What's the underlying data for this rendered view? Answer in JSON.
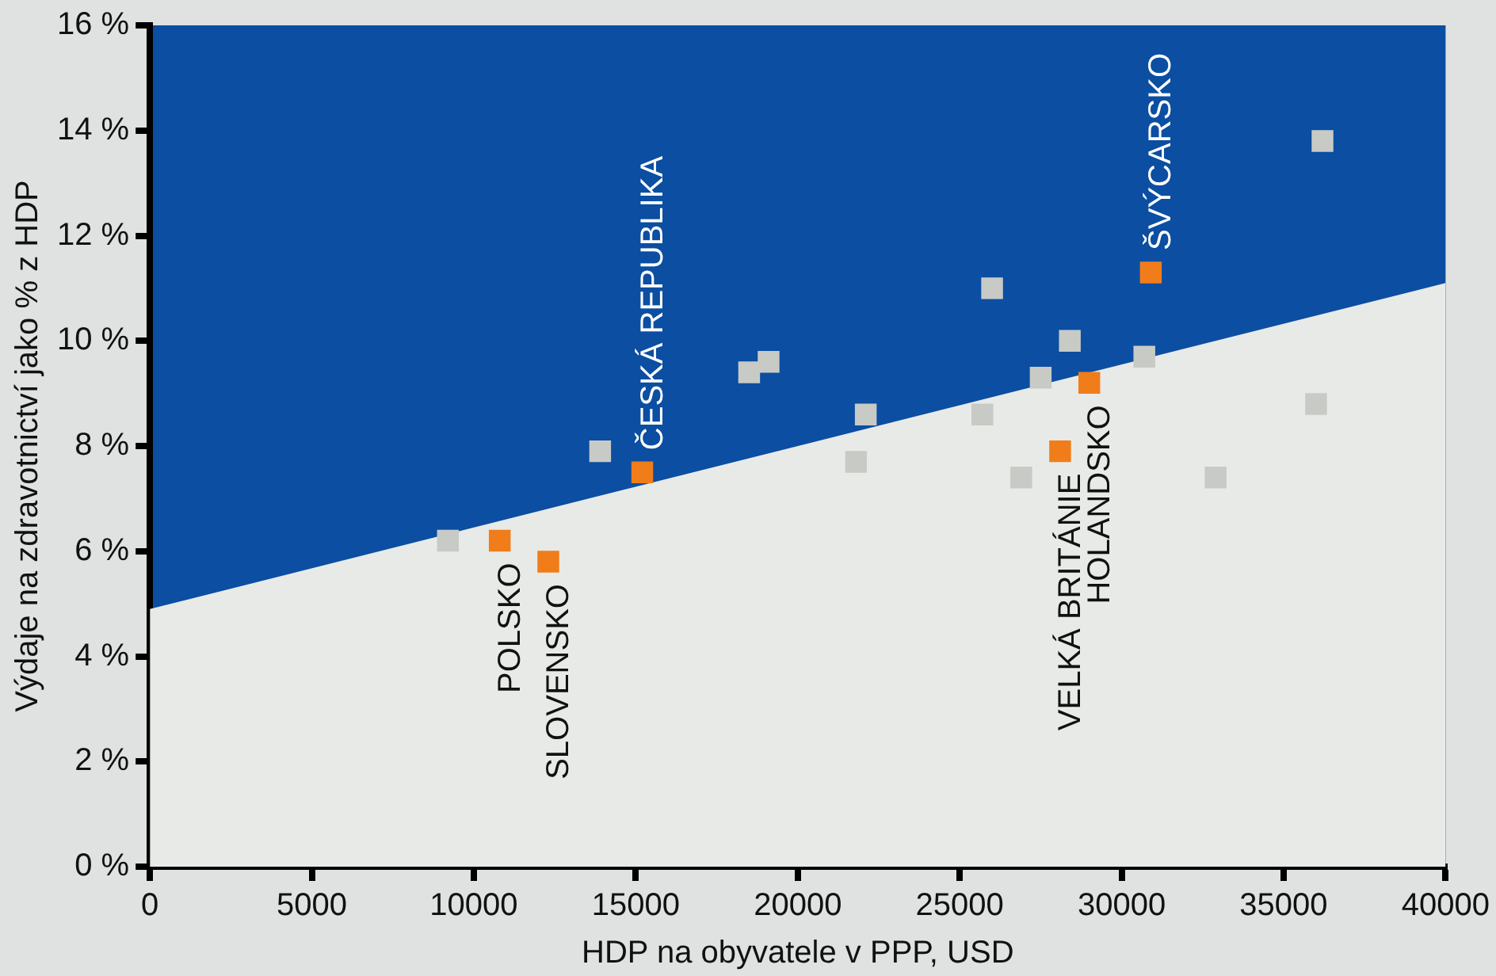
{
  "chart_data": {
    "type": "scatter",
    "xlabel": "HDP na obyvatele v PPP, USD",
    "ylabel": "Výdaje na zdravotnictví jako % z HDP",
    "xlim": [
      0,
      40000
    ],
    "xticks": [
      0,
      5000,
      10000,
      15000,
      20000,
      25000,
      30000,
      35000,
      40000
    ],
    "ylim": [
      0,
      16
    ],
    "yticks": [
      {
        "value": 0,
        "label": "0 %"
      },
      {
        "value": 2,
        "label": "2 %"
      },
      {
        "value": 4,
        "label": "4 %"
      },
      {
        "value": 6,
        "label": "6 %"
      },
      {
        "value": 8,
        "label": "8 %"
      },
      {
        "value": 10,
        "label": "10 %"
      },
      {
        "value": 12,
        "label": "12 %"
      },
      {
        "value": 14,
        "label": "14 %"
      },
      {
        "value": 16,
        "label": "16 %"
      }
    ],
    "grid": false,
    "legend": false,
    "marker": "square",
    "series": [
      {
        "type": "area",
        "color": "#e8eae8",
        "marker": "none",
        "x": [
          0,
          40000
        ],
        "values": [
          4.9,
          11.1
        ]
      },
      {
        "color": "#c8cac6",
        "x": [
          9200,
          13900,
          18500,
          19100,
          21800,
          22100,
          25700,
          26000,
          26900,
          27500,
          28400,
          30700,
          32900,
          36000,
          36200
        ],
        "values": [
          6.2,
          7.9,
          9.4,
          9.6,
          7.7,
          8.6,
          8.6,
          11.0,
          7.4,
          9.3,
          10.0,
          9.7,
          7.4,
          8.8,
          13.8
        ]
      },
      {
        "color": "#f07d1a",
        "x": [
          10800,
          12300,
          15200,
          28100,
          29000,
          30900
        ],
        "values": [
          6.2,
          5.8,
          7.5,
          7.9,
          9.2,
          11.3
        ]
      }
    ],
    "annotations": [
      {
        "text": "POLSKO",
        "x": 10800,
        "y": 6.2
      },
      {
        "text": "SLOVENSKO",
        "x": 12300,
        "y": 5.8
      },
      {
        "text": "ČESKÁ REPUBLIKA",
        "x": 15200,
        "y": 7.5
      },
      {
        "text": "VELKÁ BRITÁNIE",
        "x": 28100,
        "y": 7.9
      },
      {
        "text": "HOLANDSKO",
        "x": 29000,
        "y": 9.2
      },
      {
        "text": "ŠVÝCARSKO",
        "x": 30900,
        "y": 11.3
      }
    ]
  }
}
